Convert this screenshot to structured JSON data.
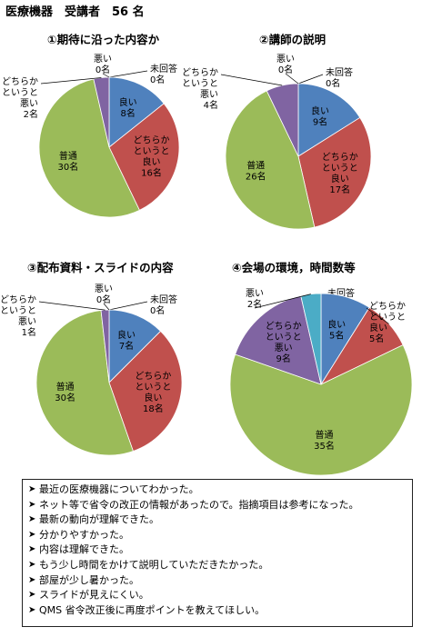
{
  "header": "医療機器　受講者　56 名",
  "chart_data": [
    {
      "type": "pie",
      "title": "①期待に沿った内容か",
      "categories": [
        "未回答",
        "良い",
        "どちらかというと良い",
        "普通",
        "どちらかというと悪い",
        "悪い"
      ],
      "values": [
        0,
        8,
        16,
        30,
        2,
        0
      ],
      "labels": [
        [
          "未回答",
          "0名"
        ],
        [
          "良い",
          "8名"
        ],
        [
          "どちらか",
          "というと",
          "良い",
          "16名"
        ],
        [
          "普通",
          "30名"
        ],
        [
          "どちらか",
          "というと",
          "悪い",
          "2名"
        ],
        [
          "悪い",
          "0名"
        ]
      ],
      "colors": [
        "#ffffff",
        "#4f81bd",
        "#c0504d",
        "#9bbb59",
        "#8064a2",
        "#4bacc6"
      ]
    },
    {
      "type": "pie",
      "title": "②講師の説明",
      "categories": [
        "未回答",
        "良い",
        "どちらかというと良い",
        "普通",
        "どちらかというと悪い",
        "悪い"
      ],
      "values": [
        0,
        9,
        17,
        26,
        4,
        0
      ],
      "labels": [
        [
          "未回答",
          "0名"
        ],
        [
          "良い",
          "9名"
        ],
        [
          "どちらか",
          "というと",
          "良い",
          "17名"
        ],
        [
          "普通",
          "26名"
        ],
        [
          "どちらか",
          "というと",
          "悪い",
          "4名"
        ],
        [
          "悪い",
          "0名"
        ]
      ],
      "colors": [
        "#ffffff",
        "#4f81bd",
        "#c0504d",
        "#9bbb59",
        "#8064a2",
        "#4bacc6"
      ]
    },
    {
      "type": "pie",
      "title": "③配布資料・スライドの内容",
      "categories": [
        "未回答",
        "良い",
        "どちらかというと良い",
        "普通",
        "どちらかというと悪い",
        "悪い"
      ],
      "values": [
        0,
        7,
        18,
        30,
        1,
        0
      ],
      "labels": [
        [
          "未回答",
          "0名"
        ],
        [
          "良い",
          "7名"
        ],
        [
          "どちらか",
          "というと",
          "良い",
          "18名"
        ],
        [
          "普通",
          "30名"
        ],
        [
          "どちらか",
          "というと",
          "悪い",
          "1名"
        ],
        [
          "悪い",
          "0名"
        ]
      ],
      "colors": [
        "#ffffff",
        "#4f81bd",
        "#c0504d",
        "#9bbb59",
        "#8064a2",
        "#4bacc6"
      ]
    },
    {
      "type": "pie",
      "title": "④会場の環境，時間数等",
      "categories": [
        "未回答",
        "良い",
        "どちらかというと良い",
        "普通",
        "どちらかというと悪い",
        "悪い"
      ],
      "values": [
        0,
        5,
        5,
        35,
        9,
        2
      ],
      "labels": [
        [
          "未回答",
          "0名"
        ],
        [
          "良い",
          "5名"
        ],
        [
          "どちらか",
          "というと",
          "良い",
          "5名"
        ],
        [
          "普通",
          "35名"
        ],
        [
          "どちらか",
          "というと",
          "悪い",
          "9名"
        ],
        [
          "悪い",
          "2名"
        ]
      ],
      "colors": [
        "#ffffff",
        "#4f81bd",
        "#c0504d",
        "#9bbb59",
        "#8064a2",
        "#4bacc6"
      ]
    }
  ],
  "comments": [
    "最近の医療機器についてわかった。",
    "ネット等で省令の改正の情報があったので。指摘項目は参考になった。",
    "最新の動向が理解できた。",
    "分かりやすかった。",
    "内容は理解できた。",
    "もう少し時間をかけて説明していただきたかった。",
    "部屋が少し暑かった。",
    "スライドが見えにくい。",
    "QMS 省令改正後に再度ポイントを教えてほしい。"
  ],
  "bullet": "➤"
}
